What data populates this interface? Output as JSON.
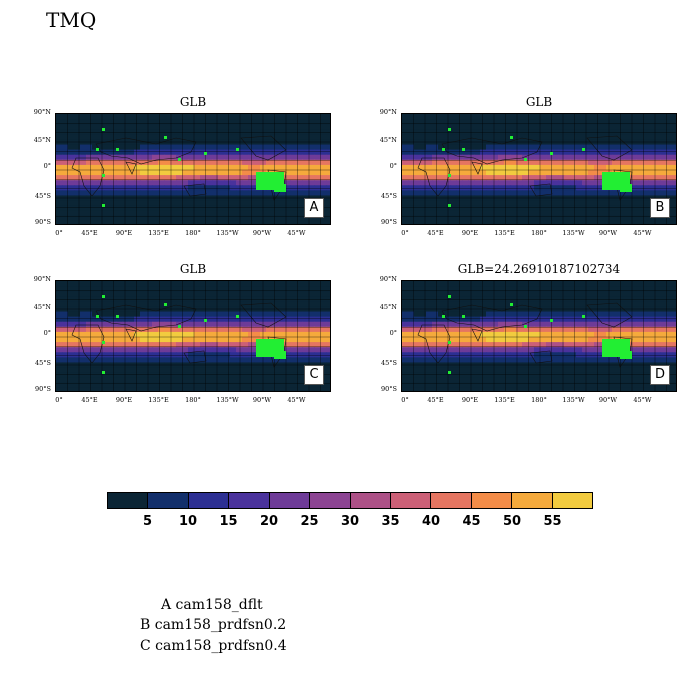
{
  "page_title": "TMQ",
  "chart_data": {
    "type": "heatmap",
    "variable": "TMQ",
    "panels": [
      {
        "title": "GLB",
        "label": "A"
      },
      {
        "title": "GLB",
        "label": "B"
      },
      {
        "title": "GLB",
        "label": "C"
      },
      {
        "title": "GLB=24.26910187102734",
        "label": "D"
      }
    ],
    "y_ticks": [
      "90°N",
      "45°N",
      "0°",
      "45°S",
      "90°S"
    ],
    "x_ticks": [
      "0°",
      "45°E",
      "90°E",
      "135°E",
      "180°",
      "135°W",
      "90°W",
      "45°W"
    ],
    "colorbar": {
      "levels": [
        "5",
        "10",
        "15",
        "20",
        "25",
        "30",
        "35",
        "40",
        "45",
        "50",
        "55"
      ],
      "colors": [
        "#0b2535",
        "#122f6b",
        "#2c2f93",
        "#4a329c",
        "#6e3b98",
        "#8c4493",
        "#ad5187",
        "#cc6077",
        "#e57561",
        "#f38c48",
        "#f5aa3c",
        "#f2cb3f",
        "#e4ee5a"
      ]
    }
  },
  "legend": {
    "a": "A  cam158_dflt",
    "b": "B  cam158_prdfsn0.2",
    "c": "C  cam158_prdfsn0.4"
  }
}
